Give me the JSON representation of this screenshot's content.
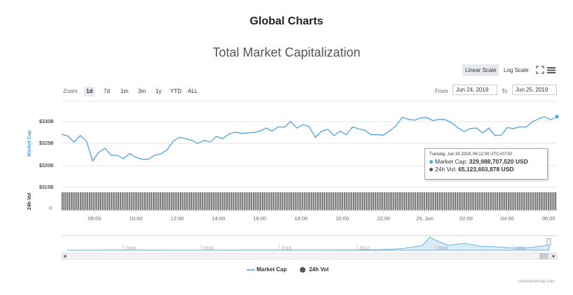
{
  "page_title": "Global Charts",
  "chart_title": "Total Market Capitalization",
  "scale_buttons": {
    "linear": "Linear Scale",
    "log": "Log Scale"
  },
  "icons": {
    "fullscreen": "fullscreen-icon",
    "menu": "hamburger-menu-icon",
    "nav_left": "arrow-left-icon",
    "nav_right": "arrow-right-icon"
  },
  "zoom": {
    "label": "Zoom",
    "options": [
      "1d",
      "7d",
      "1m",
      "3m",
      "1y",
      "YTD",
      "ALL"
    ],
    "selected": "1d"
  },
  "range": {
    "from_label": "From",
    "from_value": "Jun 24, 2019",
    "to_label": "To",
    "to_value": "Jun 25, 2019"
  },
  "colors": {
    "market_cap": "#4aa3df",
    "volume": "#555555",
    "navigator_fill": "#d8ebf7"
  },
  "chart_data": {
    "type": "line",
    "x_axis": {
      "ticks": [
        "08:00",
        "10:00",
        "12:00",
        "14:00",
        "16:00",
        "18:00",
        "20:00",
        "22:00",
        "25. Jun",
        "02:00",
        "04:00",
        "06:00"
      ],
      "range_hours": [
        6.4,
        30.4
      ]
    },
    "y_axis_market_cap": {
      "title": "Market Cap",
      "ticks": [
        "$330B",
        "$325B",
        "$320B",
        "$315B"
      ],
      "tick_values": [
        330,
        325,
        320,
        315
      ],
      "range_billions": [
        315,
        333.5
      ]
    },
    "y_axis_volume": {
      "title": "24h Vol",
      "ticks": [
        "0"
      ]
    },
    "series": [
      {
        "name": "Market Cap",
        "unit": "billion USD",
        "x_hours": [
          6.4,
          6.7,
          7.0,
          7.3,
          7.6,
          7.9,
          8.2,
          8.5,
          8.8,
          9.1,
          9.4,
          9.7,
          10.0,
          10.3,
          10.6,
          10.9,
          11.2,
          11.5,
          11.8,
          12.1,
          12.4,
          12.7,
          13.0,
          13.3,
          13.6,
          13.9,
          14.2,
          14.5,
          14.8,
          15.1,
          15.4,
          15.7,
          16.0,
          16.3,
          16.6,
          16.9,
          17.2,
          17.5,
          17.8,
          18.1,
          18.4,
          18.7,
          19.0,
          19.3,
          19.6,
          19.9,
          20.2,
          20.5,
          20.8,
          21.1,
          21.4,
          21.7,
          22.0,
          22.3,
          22.6,
          22.9,
          23.2,
          23.5,
          23.8,
          24.1,
          24.4,
          24.7,
          25.0,
          25.3,
          25.6,
          25.9,
          26.2,
          26.5,
          26.8,
          27.1,
          27.4,
          27.7,
          28.0,
          28.3,
          28.6,
          28.9,
          29.2,
          29.5,
          29.8,
          30.1,
          30.4
        ],
        "values": [
          326.0,
          325.6,
          324.2,
          325.7,
          324.5,
          319.9,
          321.9,
          322.8,
          321.2,
          321.2,
          320.4,
          321.6,
          320.7,
          320.3,
          320.3,
          321.2,
          321.5,
          322.4,
          324.4,
          325.3,
          325.0,
          324.6,
          323.9,
          324.6,
          324.2,
          325.5,
          325.0,
          326.0,
          326.5,
          326.2,
          326.3,
          326.4,
          326.7,
          327.4,
          326.7,
          327.7,
          327.6,
          328.9,
          327.4,
          328.2,
          327.7,
          325.3,
          326.7,
          327.1,
          325.7,
          326.7,
          325.9,
          327.7,
          327.2,
          326.9,
          325.9,
          325.9,
          325.8,
          326.8,
          327.9,
          329.9,
          329.4,
          329.2,
          329.7,
          329.8,
          329.1,
          329.4,
          329.3,
          328.6,
          327.5,
          326.6,
          327.3,
          327.4,
          326.3,
          327.4,
          325.7,
          325.8,
          327.5,
          327.3,
          327.7,
          327.6,
          328.8,
          329.5,
          330.0,
          329.3,
          330.0
        ]
      },
      {
        "name": "24h Vol",
        "unit": "billion USD",
        "approx_level": 65
      }
    ],
    "tooltip": {
      "date": "Tuesday, Jun 25 2019, 06:12:00 UTC+07:00",
      "rows": [
        {
          "label": "Market Cap:",
          "value": "329,988,707,520 USD"
        },
        {
          "label": "24h Vol:",
          "value": "65,123,603,878 USD"
        }
      ]
    },
    "navigator": {
      "ticks": [
        "2014",
        "2015",
        "2016",
        "2017",
        "2018",
        "2019"
      ],
      "years": [
        2013.3,
        2014,
        2015,
        2016,
        2016.5,
        2017,
        2017.3,
        2017.6,
        2017.85,
        2017.95,
        2018.05,
        2018.2,
        2018.4,
        2018.6,
        2018.8,
        2019.0,
        2019.2,
        2019.4,
        2019.48
      ],
      "values": [
        1,
        10,
        5,
        7,
        10,
        18,
        40,
        100,
        280,
        790,
        560,
        300,
        420,
        250,
        210,
        130,
        140,
        270,
        330
      ],
      "range_years": [
        2013.3,
        2019.5
      ],
      "max_value": 800
    },
    "legend": [
      "Market Cap",
      "24h Vol"
    ],
    "credits": "coinmarketcap.com"
  }
}
